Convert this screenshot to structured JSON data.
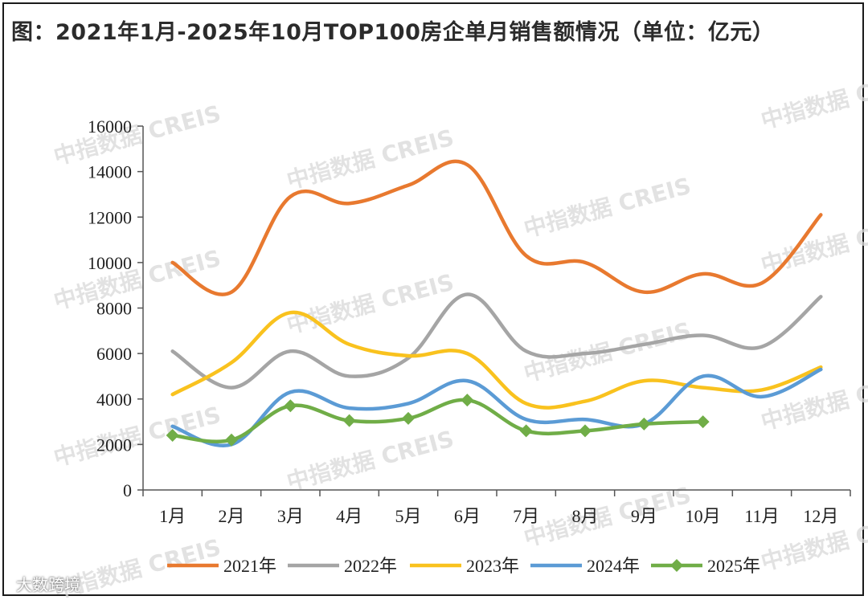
{
  "title": "图：2021年1月-2025年10月TOP100房企单月销售额情况（单位：亿元）",
  "watermark": "中指数据 CREIS",
  "brand": "大数跨境",
  "chart_data": {
    "type": "line",
    "categories": [
      "1月",
      "2月",
      "3月",
      "4月",
      "5月",
      "6月",
      "7月",
      "8月",
      "9月",
      "10月",
      "11月",
      "12月"
    ],
    "ylim": [
      0,
      16000
    ],
    "yticks": [
      0,
      2000,
      4000,
      6000,
      8000,
      10000,
      12000,
      14000,
      16000
    ],
    "legend_position": "bottom",
    "series": [
      {
        "name": "2021年",
        "color": "#E8792F",
        "marker": "none",
        "values": [
          10000,
          8700,
          12900,
          12600,
          13400,
          14300,
          10300,
          10000,
          8700,
          9500,
          9100,
          12100
        ]
      },
      {
        "name": "2022年",
        "color": "#A5A5A5",
        "marker": "none",
        "values": [
          6100,
          4500,
          6100,
          5000,
          5800,
          8600,
          6100,
          6000,
          6400,
          6800,
          6300,
          8500
        ]
      },
      {
        "name": "2023年",
        "color": "#F9C21E",
        "marker": "none",
        "values": [
          4200,
          5600,
          7800,
          6400,
          5900,
          6000,
          3800,
          3900,
          4800,
          4500,
          4400,
          5400
        ]
      },
      {
        "name": "2024年",
        "color": "#5B9BD5",
        "marker": "none",
        "values": [
          2800,
          2000,
          4300,
          3600,
          3800,
          4800,
          3100,
          3100,
          2900,
          5000,
          4100,
          5300
        ]
      },
      {
        "name": "2025年",
        "color": "#70AD47",
        "marker": "diamond",
        "values": [
          2400,
          2200,
          3700,
          3050,
          3150,
          3950,
          2600,
          2600,
          2900,
          3000,
          null,
          null
        ]
      }
    ]
  }
}
